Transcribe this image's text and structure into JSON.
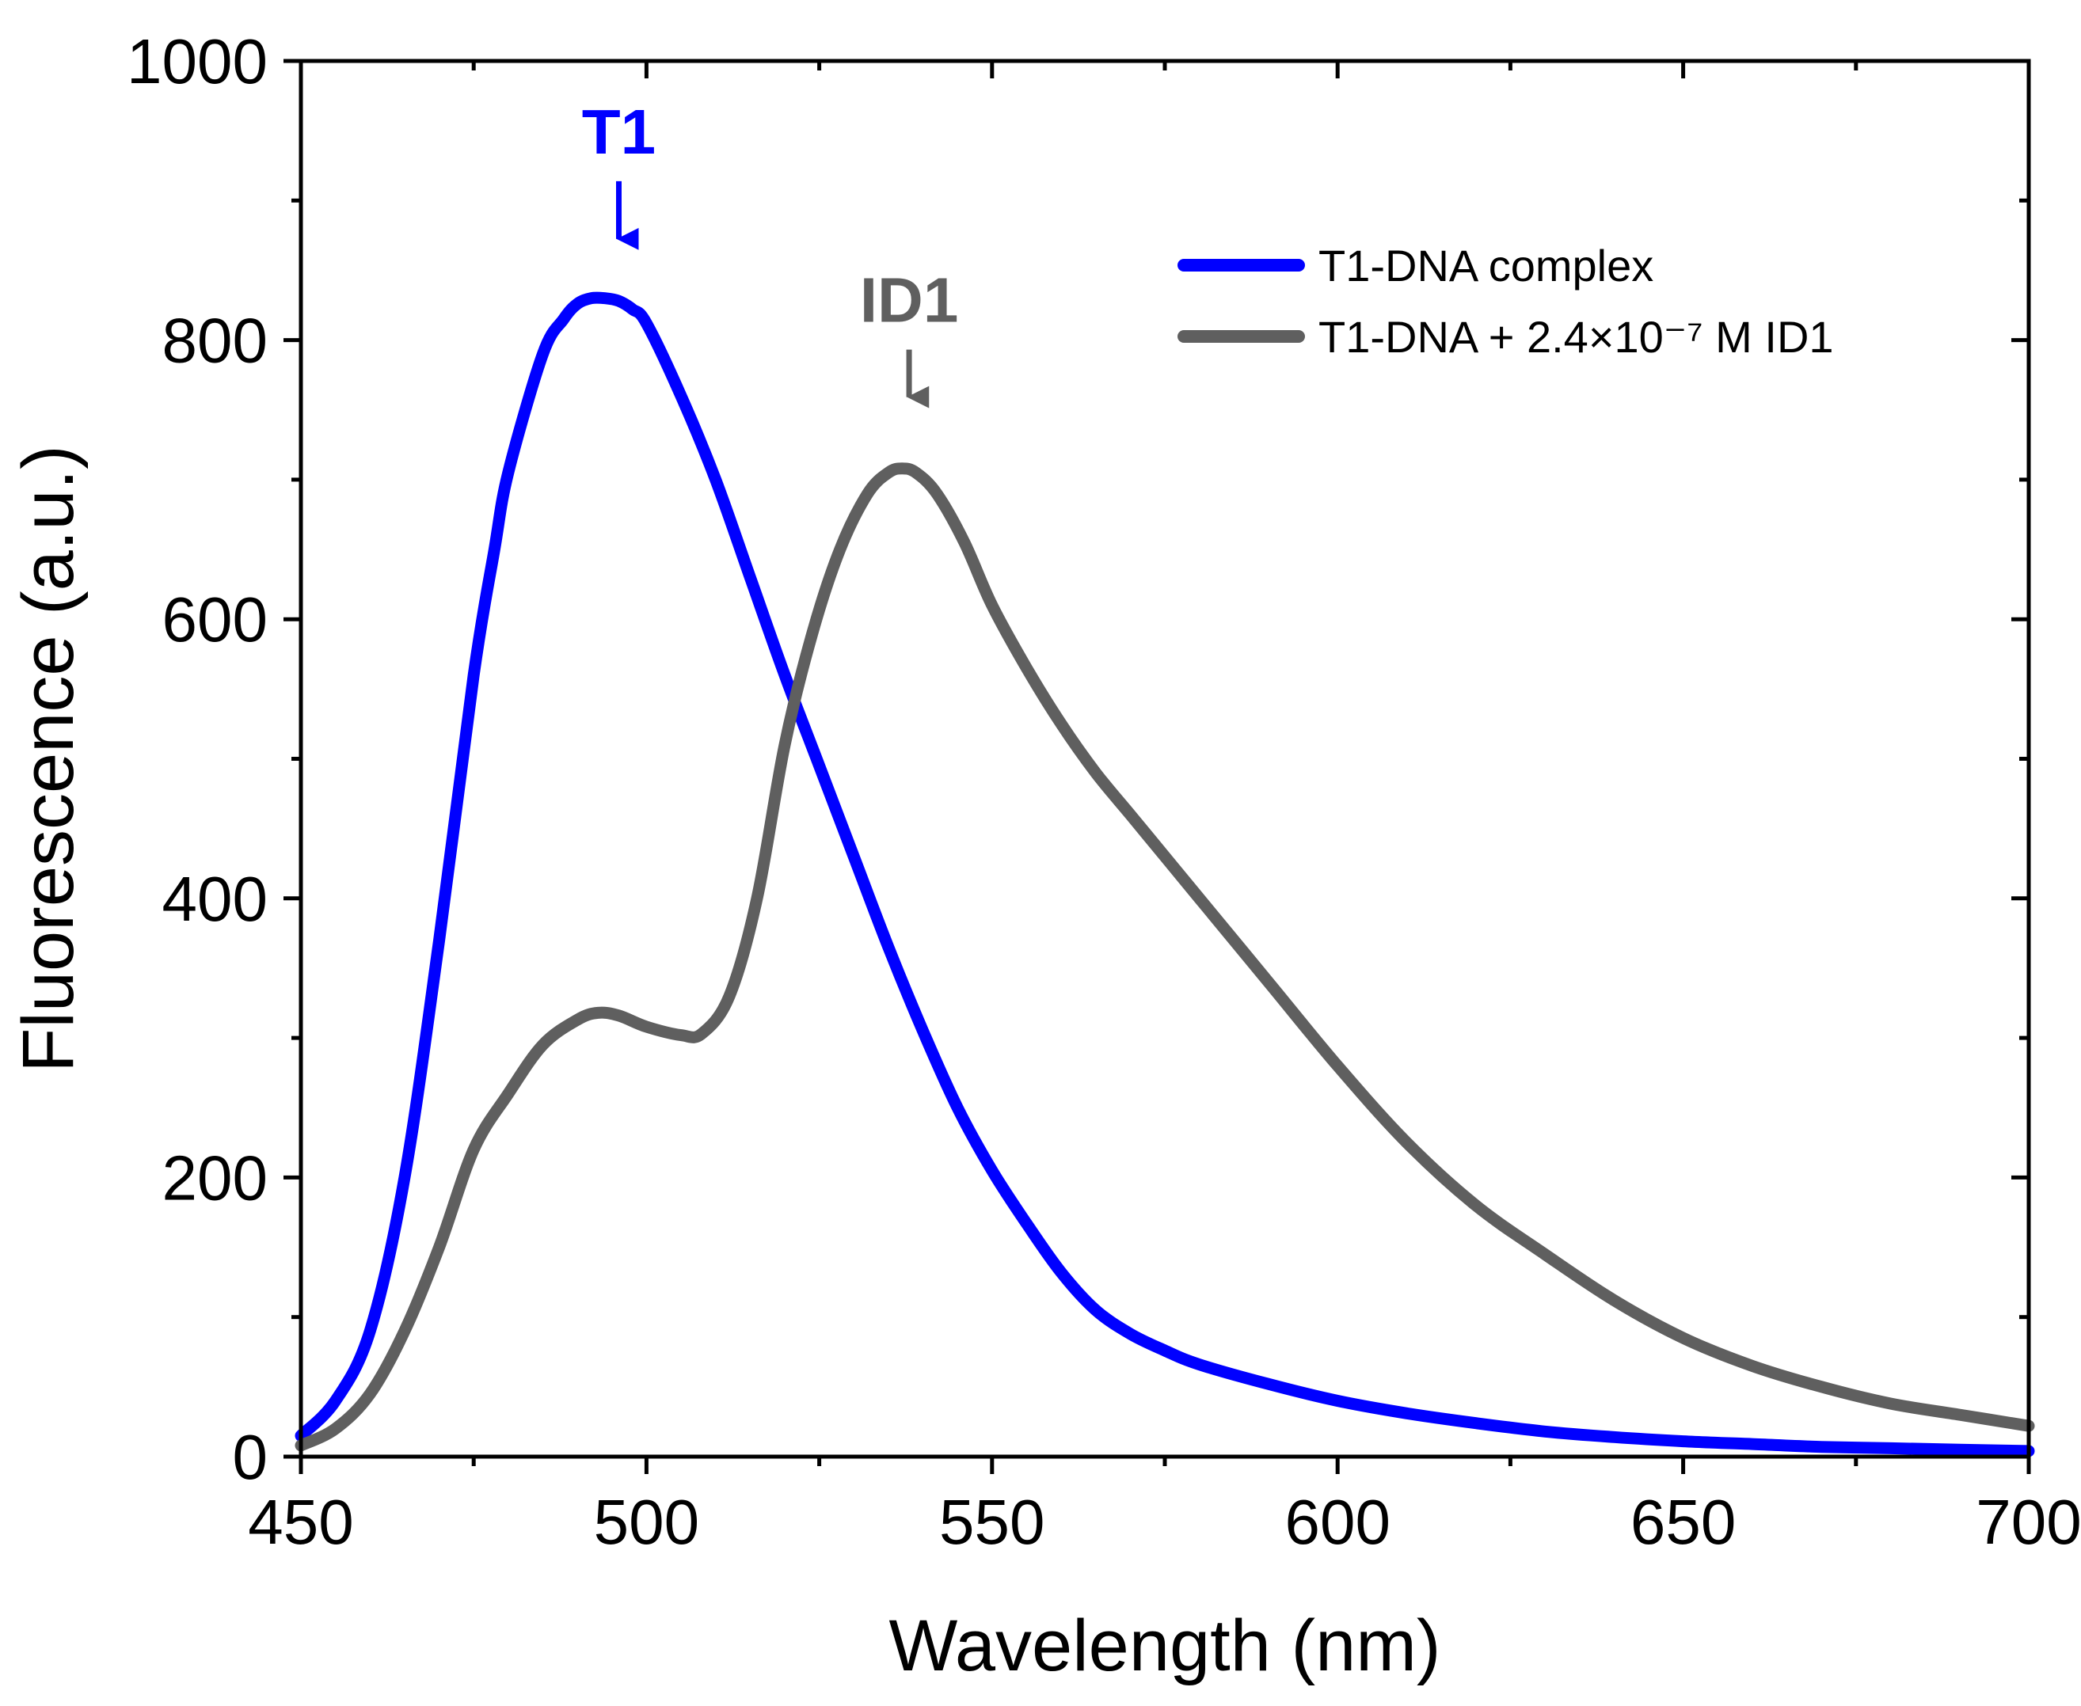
{
  "chart_data": {
    "type": "line",
    "title": "",
    "xlabel": "Wavelength (nm)",
    "ylabel": "Fluorescence (a.u.)",
    "xlim": [
      450,
      700
    ],
    "ylim": [
      0,
      1000
    ],
    "x_ticks": [
      450,
      500,
      550,
      600,
      650,
      700
    ],
    "x_tick_labels": [
      "450",
      "500",
      "550",
      "600",
      "650",
      "700"
    ],
    "y_ticks": [
      0,
      200,
      400,
      600,
      800,
      1000
    ],
    "y_tick_labels": [
      "0",
      "200",
      "400",
      "600",
      "800",
      "1000"
    ],
    "x_minor_step": 25,
    "y_minor_step": 100,
    "grid": false,
    "legend_position": "top-right",
    "series": [
      {
        "name": "T1-DNA complex",
        "color": "#0000ff",
        "x": [
          450,
          455,
          460,
          465,
          470,
          475,
          478,
          480,
          485,
          488,
          490,
          492,
          494,
          496,
          498,
          500,
          505,
          510,
          515,
          520,
          525,
          530,
          535,
          540,
          545,
          550,
          555,
          560,
          565,
          570,
          575,
          580,
          590,
          600,
          610,
          620,
          630,
          640,
          650,
          660,
          670,
          680,
          690,
          700
        ],
        "y": [
          15,
          40,
          90,
          200,
          370,
          560,
          650,
          705,
          790,
          815,
          826,
          830,
          830,
          828,
          822,
          812,
          760,
          700,
          630,
          560,
          495,
          430,
          365,
          305,
          250,
          205,
          167,
          132,
          105,
          88,
          76,
          66,
          52,
          40,
          31,
          24,
          18,
          14,
          11,
          9,
          7,
          6,
          5,
          4
        ]
      },
      {
        "name": "T1-DNA + 2.4×10⁻⁷ M ID1",
        "color": "#5f5f5f",
        "x": [
          450,
          455,
          460,
          465,
          470,
          475,
          480,
          485,
          490,
          493,
          496,
          500,
          505,
          508,
          512,
          516,
          520,
          524,
          528,
          532,
          535,
          537,
          539,
          542,
          546,
          550,
          555,
          560,
          565,
          570,
          575,
          580,
          590,
          600,
          610,
          620,
          630,
          640,
          650,
          660,
          670,
          680,
          690,
          700
        ],
        "y": [
          8,
          20,
          45,
          90,
          150,
          220,
          260,
          295,
          313,
          318,
          316,
          308,
          302,
          303,
          330,
          400,
          510,
          590,
          650,
          690,
          705,
          708,
          705,
          690,
          655,
          610,
          565,
          525,
          490,
          460,
          430,
          400,
          340,
          280,
          225,
          180,
          145,
          112,
          85,
          65,
          50,
          38,
          30,
          22
        ]
      }
    ],
    "annotations": [
      {
        "text": "T1",
        "x": 496,
        "y": 860,
        "color": "#0000ff"
      },
      {
        "text": "ID1",
        "x": 538,
        "y": 745,
        "color": "#5f5f5f"
      }
    ]
  }
}
